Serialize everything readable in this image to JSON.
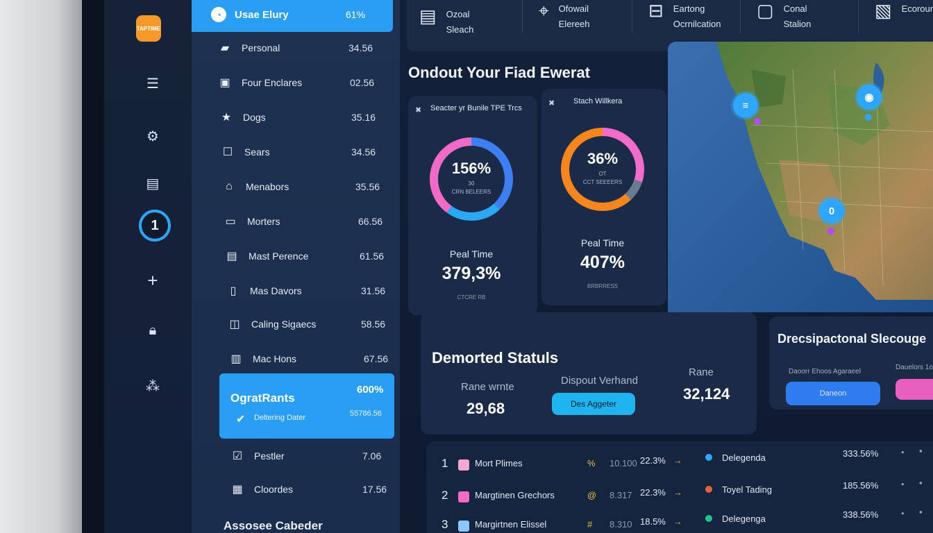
{
  "rail": {
    "logo_text": "TAPTIME",
    "badge": "1",
    "icons": [
      "menu-icon",
      "gear-icon",
      "card-icon",
      "plus-icon",
      "lock-icon",
      "share-icon"
    ]
  },
  "list": {
    "active": {
      "label": "Usae Elury",
      "value": "61%"
    },
    "items": [
      {
        "icon": "folder-icon",
        "label": "Personal",
        "value": "34.56"
      },
      {
        "icon": "briefcase-icon",
        "label": "Four Enclares",
        "value": "02.56"
      },
      {
        "icon": "star-icon",
        "label": "Dogs",
        "value": "35.16"
      },
      {
        "icon": "square-icon",
        "label": "Sears",
        "value": "34.56"
      },
      {
        "icon": "store-icon",
        "label": "Menabors",
        "value": "35.56"
      },
      {
        "icon": "monitor-icon",
        "label": "Morters",
        "value": "66.56"
      },
      {
        "icon": "document-icon",
        "label": "Mast Perence",
        "value": "61.56"
      },
      {
        "icon": "page-icon",
        "label": "Mas Davors",
        "value": "31.56"
      },
      {
        "icon": "bag-icon",
        "label": "Caling Sigaecs",
        "value": "58.56"
      },
      {
        "icon": "id-card-icon",
        "label": "Mac Hons",
        "value": "67.56"
      }
    ],
    "highlight": {
      "title": "OgratRants",
      "value": "600%",
      "sub": "Deltering Dater",
      "subvalue": "55786.56"
    },
    "after": [
      {
        "icon": "checkbox-icon",
        "label": "Pestler",
        "value": "7.06"
      },
      {
        "icon": "calendar-icon",
        "label": "Cloordes",
        "value": "17.56"
      }
    ],
    "bottom_label": "Assosee Cabeder"
  },
  "topbar": [
    {
      "icon": "drawer-icon",
      "line1": "Ozoal",
      "line2": "Sleach"
    },
    {
      "icon": "map-pin-icon",
      "line1": "Ofowail",
      "line2": "Elereeh"
    },
    {
      "icon": "train-icon",
      "line1": "Eartong",
      "line2": "Ocrnilcation"
    },
    {
      "icon": "box-icon",
      "line1": "Conal",
      "line2": "Stalion"
    },
    {
      "icon": "image-icon",
      "line1": "Ecorounl",
      "line2": ""
    }
  ],
  "section_title": "Ondout Your Fiad Ewerat",
  "donuts": [
    {
      "head": "Seacter yr Bunile TPE Trcs",
      "pct": "156%",
      "sub1": "30",
      "sub2": "CRN BELEERS",
      "label": "Peal Time",
      "big": "379,3%",
      "foot": "CTCRE RB",
      "segments": [
        {
          "color": "#3d7ff0",
          "frac": 0.38
        },
        {
          "color": "#2aa8f2",
          "frac": 0.22
        },
        {
          "color": "#f06ac7",
          "frac": 0.4
        }
      ]
    },
    {
      "head": "Stach Willkera",
      "pct": "36%",
      "sub1": "OT",
      "sub2": "CCT SEEEERS",
      "label": "Peal Time",
      "big": "407%",
      "foot": "BRBRRESS",
      "segments": [
        {
          "color": "#f26ccc",
          "frac": 0.3
        },
        {
          "color": "#6c7a8e",
          "frac": 0.08
        },
        {
          "color": "#f5851e",
          "frac": 0.62
        }
      ]
    }
  ],
  "map": {
    "pins": [
      "0"
    ]
  },
  "status": {
    "title": "Demorted Statuls",
    "col1_label": "Rane wrnte",
    "col1_value": "29,68",
    "col2_label": "Dispout Verhand",
    "col2_button": "Des Aggeter",
    "col3_label": "Rane",
    "col3_value": "32,124"
  },
  "side": {
    "title": "Drecsipactonal Slecouge",
    "lbl1": "Daoorr Ehoos Agaraeel",
    "lbl2": "Dauelors 1o",
    "button": "Daneon"
  },
  "table": {
    "rows": [
      {
        "rank": "1",
        "name": "Mort Plimes",
        "mark": "%",
        "c1": "10.100",
        "c2": "22.3%",
        "right_name": "Delegenda",
        "right_val": "333.56%"
      },
      {
        "rank": "2",
        "name": "Margtinen Grechors",
        "mark": "@",
        "c1": "8.317",
        "c2": "22.3%",
        "right_name": "Toyel Tading",
        "right_val": "185.56%"
      },
      {
        "rank": "3",
        "name": "Margirtnen Elissel",
        "mark": "#",
        "c1": "8.310",
        "c2": "18.5%",
        "right_name": "Delegenga",
        "right_val": "338.56%"
      }
    ]
  },
  "colors": {
    "accent_blue": "#2a9df4",
    "panel": "#1b2b47",
    "pink": "#f06ac7",
    "orange": "#f5851e"
  }
}
